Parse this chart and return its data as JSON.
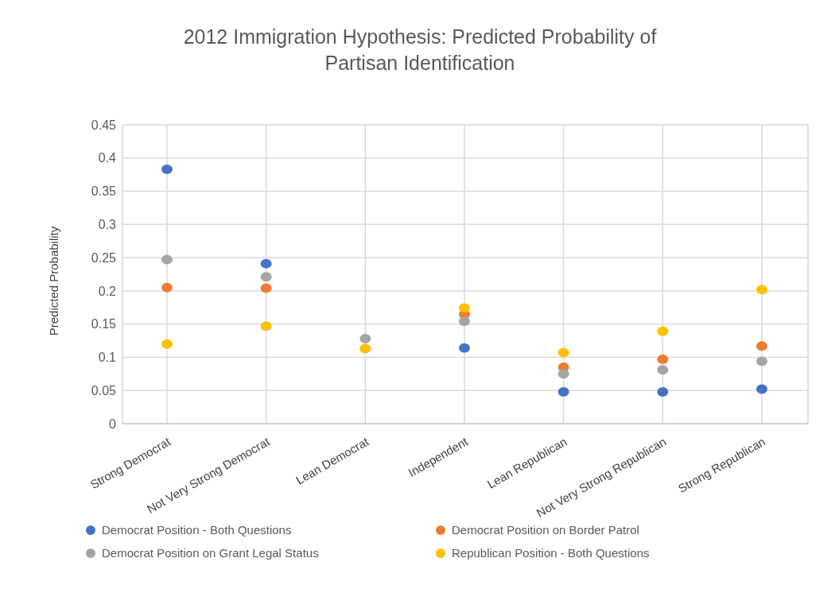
{
  "chart_data": {
    "type": "scatter",
    "title": "2012 Immigration Hypothesis: Predicted Probability of Partisan Identification",
    "ylabel": "Predicted Probability",
    "categories": [
      "Strong Democrat",
      "Not Very Strong Democrat",
      "Lean Democrat",
      "Independent",
      "Lean Republican",
      "Not Very Strong Republican",
      "Strong Republican"
    ],
    "series": [
      {
        "name": "Democrat Position - Both Questions",
        "color": "#4472c4",
        "values": [
          0.383,
          0.241,
          null,
          0.114,
          0.048,
          0.048,
          0.052
        ]
      },
      {
        "name": "Democrat Position on Border Patrol",
        "color": "#ed7d31",
        "values": [
          0.205,
          0.204,
          null,
          0.165,
          0.085,
          0.097,
          0.117
        ]
      },
      {
        "name": "Democrat Position on Grant Legal Status",
        "color": "#a5a5a5",
        "values": [
          0.247,
          0.221,
          0.128,
          0.154,
          0.075,
          0.081,
          0.094
        ]
      },
      {
        "name": "Republican Position - Both Questions",
        "color": "#ffc000",
        "values": [
          0.12,
          0.147,
          0.113,
          0.174,
          0.107,
          0.139,
          0.202
        ]
      }
    ],
    "ylim": [
      0,
      0.45
    ],
    "yticks": [
      0,
      0.05,
      0.1,
      0.15,
      0.2,
      0.25,
      0.3,
      0.35,
      0.4,
      0.45
    ],
    "grid": true,
    "legend": "bottom",
    "marker": "circle"
  }
}
